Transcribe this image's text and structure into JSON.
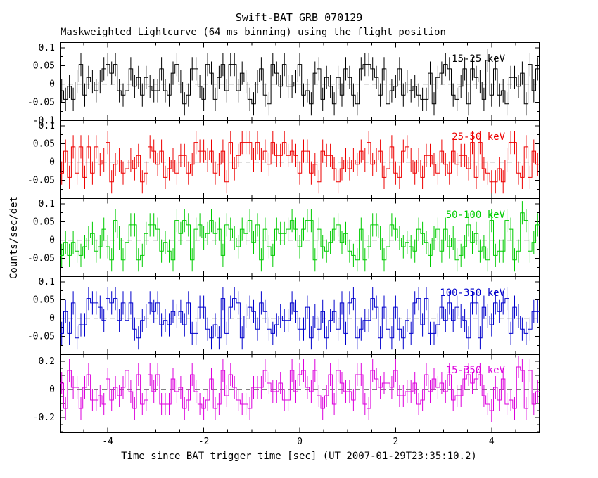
{
  "figure": {
    "title": "Swift-BAT GRB 070129",
    "subtitle": "Maskweighted Lightcurve (64 ms binning) using the flight position",
    "ylabel": "Counts/sec/det",
    "xlabel": "Time since BAT trigger time [sec] (UT 2007-01-29T23:35:10.2)"
  },
  "chart_data": {
    "type": "line",
    "subtype": "step-histogram-with-errorbars",
    "title": "Swift-BAT GRB 070129",
    "x_range": [
      -5,
      5
    ],
    "x_major_ticks": [
      -4,
      -2,
      0,
      2,
      4
    ],
    "x_tick_labels": [
      "-4",
      "-2",
      "0",
      "2",
      "4"
    ],
    "x_minor_step": 0.5,
    "bin_seconds": 0.064,
    "panels": [
      {
        "label": "15-25 keV",
        "color": "#000000",
        "y_range": [
          -0.099,
          0.115
        ],
        "y_ticks": [
          0.1,
          0.05,
          0,
          -0.05,
          -0.1
        ],
        "y_tick_labels": [
          "0.1",
          "0.05",
          "0",
          "-0.05",
          "-0.1"
        ],
        "y_minor_step": 0.025,
        "err": 0.032,
        "values": [
          -0.018,
          -0.042,
          -0.006,
          -0.042,
          0.006,
          0.054,
          -0.03,
          0.018,
          0.006,
          -0.018,
          0.006,
          0.042,
          0.054,
          0.03,
          0.054,
          -0.018,
          -0.03,
          -0.018,
          0.042,
          -0.006,
          0.018,
          -0.03,
          0.018,
          -0.006,
          -0.018,
          -0.018,
          0.042,
          -0.018,
          -0.03,
          0.03,
          0.054,
          0.006,
          -0.054,
          -0.03,
          0.042,
          0.042,
          -0.006,
          -0.042,
          0.054,
          0.03,
          -0.042,
          0.018,
          0.054,
          -0.018,
          0.054,
          0.054,
          -0.018,
          0.03,
          0.006,
          -0.042,
          -0.054,
          0.006,
          0.042,
          -0.03,
          -0.054,
          0.054,
          0.03,
          -0.006,
          0.054,
          -0.006,
          -0.006,
          0.006,
          0.054,
          -0.03,
          -0.018,
          -0.054,
          0.03,
          0.042,
          -0.042,
          0.018,
          -0.006,
          -0.054,
          0.018,
          -0.03,
          0.042,
          0.018,
          -0.03,
          -0.054,
          0.042,
          0.054,
          0.054,
          0.042,
          0.018,
          -0.03,
          0.042,
          -0.054,
          -0.018,
          -0.006,
          0.042,
          -0.03,
          0.006,
          -0.018,
          -0.006,
          -0.03,
          -0.042,
          -0.042,
          0.03,
          -0.054,
          0.018,
          0.03,
          0.054,
          0.042,
          -0.03,
          -0.042,
          -0.006,
          0.042,
          -0.054,
          0.042,
          0.018,
          0.006,
          -0.042,
          0.065,
          -0.03,
          0.042,
          -0.03,
          -0.018,
          -0.054,
          0.018,
          0.018,
          -0.006,
          0.03,
          -0.054,
          0.054,
          -0.018,
          0.042
        ]
      },
      {
        "label": "25-50 keV",
        "color": "#ee0000",
        "y_range": [
          -0.099,
          0.115
        ],
        "y_ticks": [
          0.1,
          0.05,
          0,
          -0.05,
          -0.1
        ],
        "y_tick_labels": [
          "0.1",
          "0.05",
          "0",
          "-0.05",
          null
        ],
        "y_minor_step": 0.025,
        "err": 0.032,
        "values": [
          -0.03,
          0.03,
          -0.042,
          0.042,
          -0.03,
          0.042,
          -0.042,
          0.042,
          -0.03,
          0.042,
          -0.006,
          0.006,
          0.054,
          -0.054,
          -0.006,
          0.006,
          -0.03,
          -0.018,
          0.006,
          -0.018,
          0.018,
          -0.054,
          -0.03,
          0.042,
          0.03,
          -0.006,
          0.03,
          -0.042,
          -0.018,
          0.006,
          -0.03,
          0.018,
          0.018,
          -0.03,
          -0.006,
          0.054,
          0.03,
          0.03,
          0.006,
          0.03,
          -0.03,
          -0.006,
          0.03,
          -0.054,
          0.054,
          -0.018,
          0.018,
          0.054,
          0.054,
          0.054,
          0.006,
          0.054,
          0.006,
          0.03,
          -0.006,
          0.054,
          0.018,
          0.018,
          0.054,
          0.018,
          0.03,
          0.018,
          -0.03,
          0.03,
          0.03,
          -0.03,
          -0.006,
          -0.054,
          0.03,
          0.018,
          0.018,
          -0.018,
          -0.054,
          -0.018,
          0.006,
          -0.018,
          0.006,
          -0.006,
          0.03,
          0.006,
          0.054,
          -0.006,
          0.006,
          0.03,
          -0.042,
          -0.018,
          0.042,
          -0.03,
          -0.042,
          0.03,
          0.042,
          0.006,
          -0.03,
          0.006,
          -0.042,
          0.018,
          0.018,
          -0.006,
          -0.03,
          0.03,
          -0.006,
          -0.03,
          0.03,
          -0.006,
          0.018,
          0.018,
          -0.018,
          0.054,
          -0.042,
          0.054,
          -0.018,
          -0.03,
          -0.054,
          -0.054,
          -0.018,
          -0.054,
          0.006,
          0.054,
          0.054,
          -0.03,
          -0.042,
          0.042,
          -0.042,
          0.03,
          -0.006
        ]
      },
      {
        "label": "50-100 keV",
        "color": "#00cc00",
        "y_range": [
          -0.099,
          0.115
        ],
        "y_ticks": [
          0.1,
          0.05,
          0,
          -0.05,
          -0.1
        ],
        "y_tick_labels": [
          "0.1",
          "0.05",
          "0",
          "-0.05",
          null
        ],
        "y_minor_step": 0.025,
        "err": 0.032,
        "values": [
          -0.042,
          -0.006,
          -0.042,
          -0.006,
          -0.03,
          -0.042,
          -0.018,
          0.006,
          0.018,
          -0.03,
          -0.018,
          0.03,
          -0.018,
          -0.054,
          0.054,
          0.006,
          -0.054,
          -0.006,
          0.042,
          0.042,
          -0.054,
          -0.042,
          0.018,
          0.042,
          0.042,
          0.03,
          -0.03,
          -0.006,
          -0.03,
          -0.054,
          0.054,
          0.018,
          0.054,
          0.042,
          -0.054,
          0.03,
          0.042,
          0.006,
          0.018,
          0.054,
          0.018,
          0.03,
          -0.042,
          0.042,
          0.03,
          0.006,
          -0.018,
          0.03,
          0.018,
          0.054,
          -0.006,
          0.042,
          -0.054,
          0.03,
          -0.018,
          -0.042,
          0.03,
          0.018,
          0.018,
          0.03,
          0.054,
          0.03,
          -0.018,
          0.03,
          0.054,
          0.054,
          -0.054,
          0.03,
          -0.018,
          -0.03,
          -0.006,
          0.03,
          0.042,
          -0.006,
          0.018,
          -0.03,
          -0.042,
          -0.054,
          0.03,
          -0.054,
          -0.018,
          0.042,
          0.042,
          0.006,
          -0.054,
          -0.018,
          0.042,
          0.03,
          0.006,
          -0.018,
          -0.006,
          -0.018,
          -0.03,
          0.03,
          0.018,
          -0.006,
          -0.042,
          0.006,
          0.03,
          -0.03,
          0.03,
          -0.018,
          0.006,
          -0.054,
          -0.042,
          -0.018,
          0.042,
          -0.006,
          0.018,
          -0.03,
          -0.018,
          -0.054,
          0.054,
          -0.042,
          -0.03,
          -0.03,
          0.054,
          0.03,
          -0.054,
          -0.03,
          0.075,
          0.054,
          -0.03,
          -0.006,
          0.042
        ]
      },
      {
        "label": "100-350 keV",
        "color": "#0000cc",
        "y_range": [
          -0.099,
          0.115
        ],
        "y_ticks": [
          0.1,
          0.05,
          0,
          -0.05,
          -0.1
        ],
        "y_tick_labels": [
          "0.1",
          "0.05",
          "0",
          "-0.05",
          null
        ],
        "y_minor_step": 0.025,
        "err": 0.032,
        "values": [
          -0.042,
          0.018,
          -0.042,
          0.042,
          -0.054,
          -0.018,
          -0.018,
          0.054,
          0.042,
          0.042,
          0.03,
          -0.006,
          0.054,
          0.042,
          0.054,
          -0.006,
          0.042,
          -0.006,
          0.042,
          -0.03,
          -0.054,
          -0.006,
          0.006,
          0.042,
          0.018,
          0.042,
          -0.018,
          -0.006,
          -0.018,
          0.018,
          0.006,
          0.018,
          -0.018,
          0.042,
          -0.042,
          -0.042,
          0.03,
          0.03,
          -0.03,
          -0.054,
          -0.018,
          -0.054,
          0.054,
          -0.042,
          0.03,
          0.054,
          0.042,
          -0.054,
          0.006,
          0.03,
          0.018,
          -0.03,
          0.042,
          0.018,
          -0.03,
          -0.042,
          -0.018,
          0.006,
          -0.006,
          -0.006,
          0.042,
          0.018,
          -0.03,
          -0.03,
          0.03,
          -0.054,
          0.006,
          -0.03,
          0.018,
          -0.054,
          -0.006,
          0.018,
          -0.03,
          0.042,
          -0.042,
          0.042,
          0.054,
          -0.054,
          -0.03,
          -0.006,
          -0.006,
          0.054,
          0.03,
          -0.054,
          0.03,
          -0.03,
          -0.054,
          0.03,
          -0.03,
          -0.054,
          -0.006,
          -0.042,
          0.042,
          0.054,
          -0.018,
          0.054,
          -0.042,
          -0.042,
          -0.018,
          0.03,
          -0.006,
          0.042,
          -0.006,
          0.03,
          0.006,
          -0.006,
          -0.054,
          0.042,
          0.042,
          -0.054,
          0.03,
          0.006,
          -0.018,
          0.042,
          0.018,
          0.042,
          0.054,
          -0.042,
          0.03,
          0.006,
          -0.03,
          -0.042,
          -0.03,
          0.018,
          0.018
        ]
      },
      {
        "label": "15-350 keV",
        "color": "#dd00dd",
        "y_range": [
          -0.31,
          0.25
        ],
        "y_ticks": [
          0.2,
          0.1,
          0,
          -0.1,
          -0.2
        ],
        "y_tick_labels": [
          "0.2",
          null,
          "0",
          null,
          "-0.2"
        ],
        "y_minor_step": 0.05,
        "err": 0.08,
        "values": [
          0.045,
          -0.135,
          0.135,
          0.015,
          0.015,
          -0.135,
          0.015,
          0.105,
          -0.075,
          -0.075,
          -0.045,
          -0.105,
          0.075,
          -0.075,
          0.015,
          -0.045,
          0.015,
          0.135,
          -0.015,
          -0.135,
          0.105,
          -0.105,
          -0.075,
          0.105,
          -0.015,
          0.105,
          -0.105,
          -0.105,
          -0.105,
          0.075,
          -0.015,
          0.015,
          -0.135,
          -0.075,
          0.105,
          -0.015,
          -0.105,
          -0.135,
          -0.075,
          0.075,
          -0.135,
          -0.105,
          0.135,
          -0.045,
          0.105,
          0.015,
          -0.075,
          -0.105,
          -0.105,
          -0.135,
          0.015,
          0.015,
          0.015,
          0.135,
          0.045,
          -0.015,
          -0.015,
          0.045,
          -0.075,
          -0.075,
          0.135,
          -0.015,
          0.105,
          0.135,
          0.015,
          -0.015,
          0.135,
          -0.045,
          -0.135,
          -0.045,
          0.105,
          -0.105,
          0.135,
          0.045,
          -0.015,
          -0.015,
          -0.075,
          0.105,
          0.105,
          -0.105,
          -0.135,
          0.135,
          0.075,
          0.015,
          0.045,
          0.045,
          0.015,
          0.135,
          -0.045,
          -0.045,
          -0.015,
          -0.015,
          0.045,
          -0.105,
          -0.075,
          0.105,
          -0.015,
          0.075,
          0.015,
          0.045,
          -0.015,
          0.105,
          -0.075,
          -0.045,
          -0.045,
          0.075,
          0.105,
          0.045,
          0.075,
          0.105,
          -0.045,
          -0.105,
          -0.15,
          0.015,
          -0.075,
          0.075,
          -0.105,
          -0.075,
          -0.135,
          0.16,
          0.135,
          -0.135,
          0.135,
          -0.105,
          -0.015
        ]
      }
    ]
  }
}
